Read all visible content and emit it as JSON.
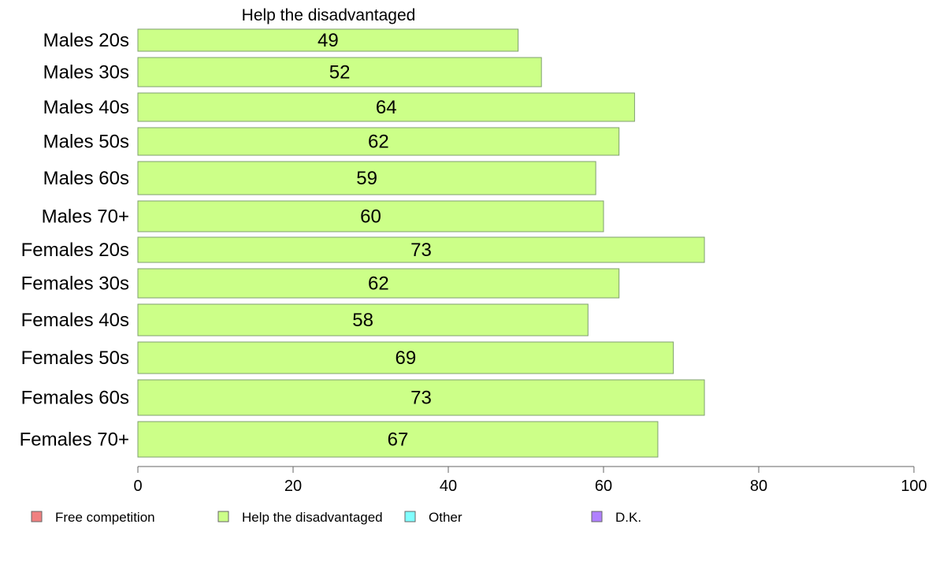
{
  "chart_data": {
    "type": "bar",
    "orientation": "horizontal",
    "title": "Help the disadvantaged",
    "categories": [
      "Males 20s",
      "Males 30s",
      "Males 40s",
      "Males 50s",
      "Males 60s",
      "Males 70+",
      "Females 20s",
      "Females 30s",
      "Females 40s",
      "Females 50s",
      "Females 60s",
      "Females 70+"
    ],
    "series": [
      {
        "name": "Help the disadvantaged",
        "color": "#ccff88",
        "values": [
          49,
          52,
          64,
          62,
          59,
          60,
          73,
          62,
          58,
          69,
          73,
          67
        ]
      }
    ],
    "xlim": [
      0,
      100
    ],
    "xticks": [
      "0",
      "20",
      "40",
      "60",
      "80",
      "100"
    ],
    "grid": false,
    "legend": {
      "placement": "bottom",
      "items": [
        {
          "label": "Free competition",
          "color": "#f08080"
        },
        {
          "label": "Help the disadvantaged",
          "color": "#ccff88"
        },
        {
          "label": "Other",
          "color": "#80ffff"
        },
        {
          "label": "D.K.",
          "color": "#b080ff"
        }
      ]
    }
  }
}
